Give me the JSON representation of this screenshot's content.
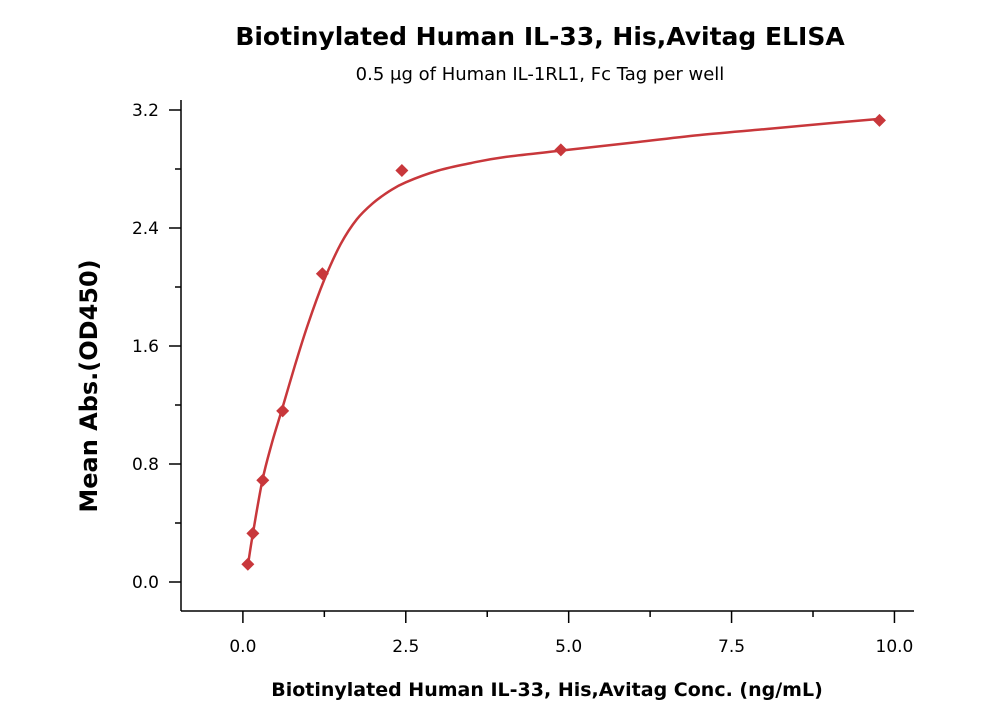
{
  "chart_data": {
    "type": "scatter",
    "title": "Biotinylated Human IL-33, His,Avitag ELISA",
    "subtitle": "0.5 μg of Human IL-1RL1, Fc Tag per well",
    "xlabel": "Biotinylated Human IL-33, His,Avitag Conc. (ng/mL)",
    "ylabel": "Mean Abs.(OD450)",
    "xlim": [
      -0.95,
      10.3
    ],
    "ylim": [
      -0.2,
      3.2
    ],
    "x_ticks": [
      0.0,
      2.5,
      5.0,
      7.5,
      10.0
    ],
    "x_tick_labels": [
      "0.0",
      "2.5",
      "5.0",
      "7.5",
      "10.0"
    ],
    "y_ticks": [
      0.0,
      0.8,
      1.6,
      2.4,
      3.2
    ],
    "y_tick_labels": [
      "0.0",
      "0.8",
      "1.6",
      "2.4",
      "3.2"
    ],
    "grid": false,
    "series": [
      {
        "marker": "diamond",
        "color": "#C8373B",
        "x": [
          0.076,
          0.153,
          0.305,
          0.61,
          1.22,
          2.44,
          4.88,
          9.77
        ],
        "y": [
          0.12,
          0.33,
          0.69,
          1.16,
          2.09,
          2.79,
          2.93,
          3.13
        ]
      }
    ],
    "fit_curve": {
      "type": "4PL",
      "color": "#C8373B",
      "x": [
        0.076,
        0.15,
        0.3,
        0.45,
        0.6,
        0.8,
        1.0,
        1.25,
        1.5,
        1.75,
        2.0,
        2.25,
        2.5,
        3.0,
        3.5,
        4.0,
        5.0,
        6.0,
        7.0,
        8.0,
        9.0,
        9.77
      ],
      "y": [
        0.11,
        0.32,
        0.69,
        0.95,
        1.17,
        1.47,
        1.75,
        2.05,
        2.29,
        2.46,
        2.57,
        2.65,
        2.71,
        2.79,
        2.84,
        2.88,
        2.93,
        2.98,
        3.03,
        3.07,
        3.11,
        3.14
      ]
    }
  }
}
